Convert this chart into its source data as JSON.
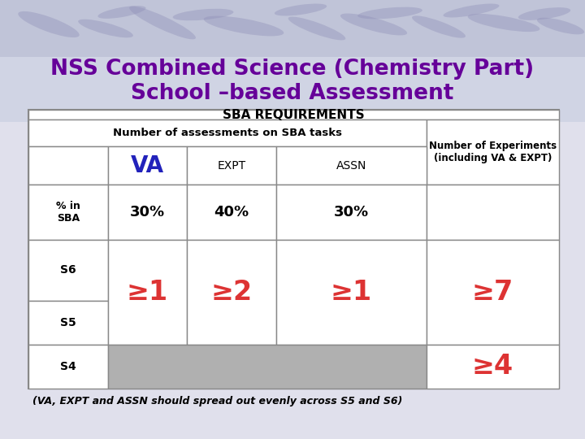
{
  "title_line1": "NSS Combined Science (Chemistry Part)",
  "title_line2": "School –based Assessment",
  "title_color": "#660099",
  "slide_bg_top": "#c8cce0",
  "slide_bg_bottom": "#e8e8f0",
  "table_bg": "#ffffff",
  "header_text": "SBA REQUIREMENTS",
  "subheader_text": "Number of assessments on SBA tasks",
  "col_headers": [
    "VA",
    "EXPT",
    "ASSN"
  ],
  "va_color": "#2222bb",
  "pct_row_label": "% in\nSBA",
  "pct_values": [
    "30%",
    "40%",
    "30%"
  ],
  "row_labels": [
    "S6",
    "S5",
    "S4"
  ],
  "red_color": "#dd3333",
  "geq_s6s5_va": "≥1",
  "geq_s6s5_expt": "≥2",
  "geq_s6s5_assn": "≥1",
  "geq_s6s5_exp": "≥7",
  "geq_s4_exp": "≥4",
  "right_col_header": "Number of Experiments\n(including VA & EXPT)",
  "footnote": "(VA, EXPT and ASSN should spread out evenly across S5 and S6)",
  "gray_fill": "#b0b0b0",
  "table_border": "#888888",
  "cell_border": "#888888"
}
